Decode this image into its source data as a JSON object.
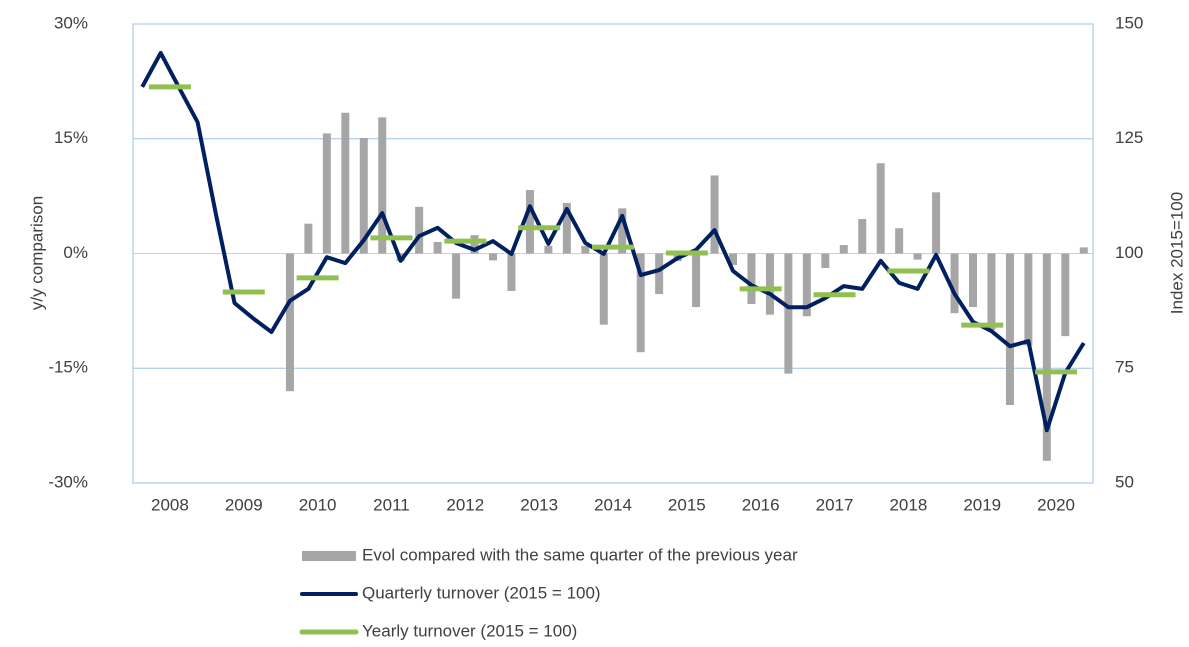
{
  "chart_data": {
    "type": "combo",
    "y_label": "y/y  comparison",
    "y2_label": "Index 2015=100",
    "categories": [
      null,
      "2008",
      null,
      null,
      null,
      "2009",
      null,
      null,
      null,
      "2010",
      null,
      null,
      null,
      "2011",
      null,
      null,
      null,
      "2012",
      null,
      null,
      null,
      "2013",
      null,
      null,
      null,
      "2014",
      null,
      null,
      null,
      "2015",
      null,
      null,
      null,
      "2016",
      null,
      null,
      null,
      "2017",
      null,
      null,
      null,
      "2018",
      null,
      null,
      null,
      "2019",
      null,
      null,
      null,
      "2020",
      null,
      null
    ],
    "ylim": [
      -30,
      30
    ],
    "yticks": [
      {
        "value": 30,
        "label": "30%"
      },
      {
        "value": 15,
        "label": "15%"
      },
      {
        "value": 0,
        "label": "0%"
      },
      {
        "value": -15,
        "label": "-15%"
      },
      {
        "value": -30,
        "label": "-30%"
      }
    ],
    "y2lim": [
      50,
      150
    ],
    "y2ticks": [
      150,
      125,
      100,
      75,
      50
    ],
    "grid": true,
    "series": [
      {
        "name": "Evol compared with the same quarter of the previous year",
        "type": "bar",
        "color": "#a6a6a6",
        "values": [
          null,
          null,
          null,
          null,
          null,
          null,
          null,
          null,
          -18.0,
          3.9,
          15.7,
          18.4,
          15.1,
          17.8,
          -1.0,
          6.1,
          1.5,
          -5.9,
          2.4,
          -0.9,
          -4.9,
          8.3,
          1.0,
          6.6,
          1.0,
          -9.3,
          5.9,
          -12.9,
          -5.3,
          -1.0,
          -7.0,
          10.2,
          -1.5,
          -6.6,
          -8.0,
          -15.7,
          -8.2,
          -1.9,
          1.1,
          4.5,
          11.8,
          3.3,
          -0.8,
          8.0,
          -7.8,
          -7.0,
          -10.0,
          -19.8,
          -12.0,
          -27.1,
          -10.8,
          0.8
        ]
      },
      {
        "name": "Quarterly turnover (2015 = 100)",
        "type": "line",
        "axis": "y2",
        "color": "#002060",
        "values": [
          136.3,
          143.7,
          136.1,
          128.6,
          108.4,
          89.2,
          85.9,
          82.9,
          89.7,
          92.3,
          99.2,
          97.9,
          102.9,
          108.8,
          98.4,
          103.8,
          105.6,
          102.3,
          100.8,
          102.7,
          99.9,
          110.3,
          102.1,
          109.7,
          102.3,
          99.9,
          108.2,
          95.3,
          96.4,
          99.0,
          100.8,
          105.1,
          96.2,
          93.1,
          91.2,
          88.3,
          88.3,
          90.3,
          92.9,
          92.3,
          98.4,
          93.6,
          92.3,
          99.7,
          91.2,
          85.1,
          83.1,
          79.8,
          80.9,
          61.5,
          74.0,
          80.5
        ]
      },
      {
        "name": "Yearly turnover (2015 = 100)",
        "type": "dash",
        "axis": "y2",
        "color": "#92c050",
        "values": [
          null,
          136.3,
          null,
          null,
          null,
          91.6,
          null,
          null,
          null,
          94.7,
          null,
          null,
          null,
          103.4,
          null,
          null,
          null,
          102.7,
          null,
          null,
          null,
          105.6,
          null,
          null,
          null,
          101.4,
          null,
          null,
          null,
          100.1,
          null,
          null,
          null,
          92.3,
          null,
          null,
          null,
          91.0,
          null,
          null,
          null,
          96.2,
          null,
          null,
          null,
          84.4,
          null,
          null,
          null,
          74.2,
          null,
          null
        ]
      }
    ]
  }
}
